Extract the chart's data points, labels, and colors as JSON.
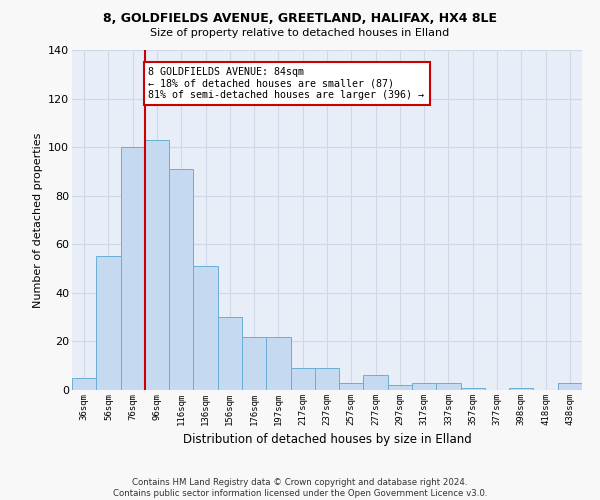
{
  "title": "8, GOLDFIELDS AVENUE, GREETLAND, HALIFAX, HX4 8LE",
  "subtitle": "Size of property relative to detached houses in Elland",
  "xlabel": "Distribution of detached houses by size in Elland",
  "ylabel": "Number of detached properties",
  "bar_color": "#c5d9f0",
  "bar_edge_color": "#6baed6",
  "background_color": "#e8eef8",
  "grid_color": "#d0d8e8",
  "fig_background": "#f8f8f8",
  "categories": [
    "36sqm",
    "56sqm",
    "76sqm",
    "96sqm",
    "116sqm",
    "136sqm",
    "156sqm",
    "176sqm",
    "197sqm",
    "217sqm",
    "237sqm",
    "257sqm",
    "277sqm",
    "297sqm",
    "317sqm",
    "337sqm",
    "357sqm",
    "377sqm",
    "398sqm",
    "418sqm",
    "438sqm"
  ],
  "values": [
    5,
    55,
    100,
    103,
    91,
    51,
    30,
    22,
    22,
    9,
    9,
    3,
    6,
    2,
    3,
    3,
    1,
    0,
    1,
    0,
    3
  ],
  "vline_x": 2.0,
  "vline_color": "#cc0000",
  "annotation_text": "8 GOLDFIELDS AVENUE: 84sqm\n← 18% of detached houses are smaller (87)\n81% of semi-detached houses are larger (396) →",
  "annotation_box_facecolor": "#ffffff",
  "annotation_box_edgecolor": "#cc0000",
  "ylim": [
    0,
    140
  ],
  "yticks": [
    0,
    20,
    40,
    60,
    80,
    100,
    120,
    140
  ],
  "footer": "Contains HM Land Registry data © Crown copyright and database right 2024.\nContains public sector information licensed under the Open Government Licence v3.0."
}
